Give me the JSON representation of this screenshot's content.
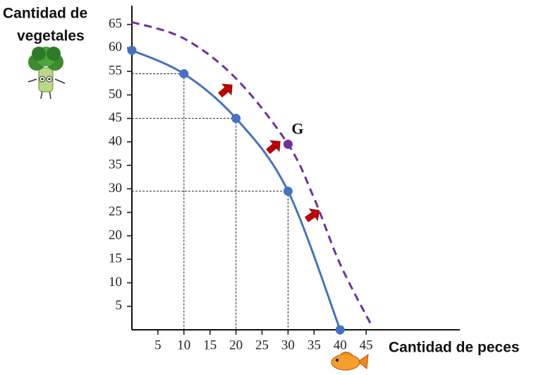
{
  "chart_data": {
    "type": "line",
    "y_label_lines": [
      "Cantidad de",
      "vegetales"
    ],
    "x_label": "Cantidad de peces",
    "xlim": [
      0,
      63
    ],
    "ylim": [
      0,
      69
    ],
    "xticks": [
      5,
      10,
      15,
      20,
      25,
      30,
      35,
      40,
      45
    ],
    "yticks": [
      5,
      10,
      15,
      20,
      25,
      30,
      35,
      40,
      45,
      50,
      55,
      60,
      65
    ],
    "guides": true,
    "series": [
      {
        "color": "#4472c4",
        "dashed": false,
        "markers": true,
        "x": [
          0,
          10,
          20,
          30,
          40
        ],
        "values": [
          59.5,
          54.5,
          45,
          29.5,
          0
        ]
      },
      {
        "color": "#7030a0",
        "dashed": true,
        "markers": false,
        "x": [
          0,
          10,
          20,
          30,
          35,
          40,
          46
        ],
        "values": [
          65.5,
          62,
          53.5,
          39.5,
          28,
          14,
          1
        ]
      }
    ],
    "points": [
      {
        "label": "G",
        "x": 30,
        "y": 39.5,
        "color": "#7030a0"
      }
    ]
  }
}
